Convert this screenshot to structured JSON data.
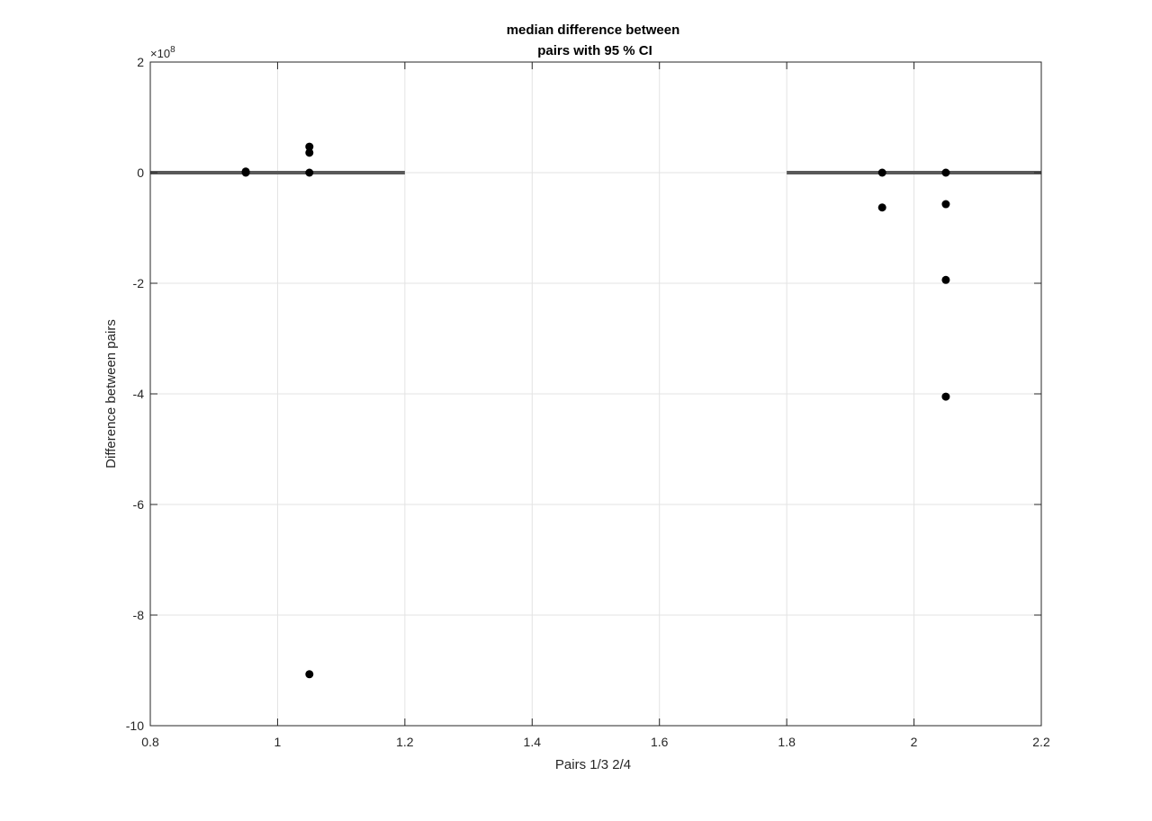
{
  "chart_data": {
    "type": "scatter",
    "title": [
      "median difference between",
      "pairs with 95 % CI"
    ],
    "xlabel": "Pairs 1/3 2/4",
    "ylabel": "Difference between pairs",
    "xlim": [
      0.8,
      2.2
    ],
    "ylim": [
      -10,
      2
    ],
    "y_exponent_label": "×10",
    "y_exponent_power": "8",
    "x_ticks": [
      0.8,
      1,
      1.2,
      1.4,
      1.6,
      1.8,
      2,
      2.2
    ],
    "x_tick_labels": [
      "0.8",
      "1",
      "1.2",
      "1.4",
      "1.6",
      "1.8",
      "2",
      "2.2"
    ],
    "y_ticks": [
      -10,
      -8,
      -6,
      -4,
      -2,
      0,
      2
    ],
    "y_tick_labels": [
      "-10",
      "-8",
      "-6",
      "-4",
      "-2",
      "0",
      "2"
    ],
    "grid": true,
    "colors": {
      "points": "#000000",
      "median_line": "#595959",
      "grid": "#e3e3e3",
      "axes": "#262626"
    },
    "median_lines": [
      {
        "x": [
          0.8,
          1.2
        ],
        "y": 0
      },
      {
        "x": [
          1.8,
          2.2
        ],
        "y": 0
      }
    ],
    "points": [
      {
        "x": 0.95,
        "y": 0.02
      },
      {
        "x": 0.95,
        "y": 0.0
      },
      {
        "x": 1.05,
        "y": 0.47
      },
      {
        "x": 1.05,
        "y": 0.36
      },
      {
        "x": 1.05,
        "y": 0.0
      },
      {
        "x": 1.05,
        "y": -9.07
      },
      {
        "x": 1.95,
        "y": 0.0
      },
      {
        "x": 1.95,
        "y": -0.63
      },
      {
        "x": 2.05,
        "y": 0.0
      },
      {
        "x": 2.05,
        "y": -0.57
      },
      {
        "x": 2.05,
        "y": -1.94
      },
      {
        "x": 2.05,
        "y": -4.05
      }
    ]
  }
}
